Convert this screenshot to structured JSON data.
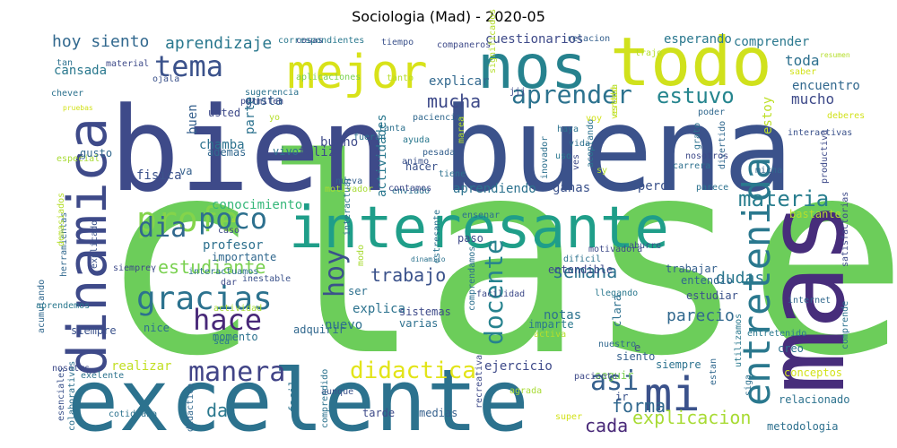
{
  "title": "Sociologia (Mad) - 2020-05",
  "words": [
    {
      "text": "clase",
      "color": "#6ccd5a"
    },
    {
      "text": "bien",
      "color": "#3e4a89"
    },
    {
      "text": "buena",
      "color": "#3b528b"
    },
    {
      "text": "mas",
      "color": "#472d7b"
    },
    {
      "text": "excelente",
      "color": "#2c728e"
    },
    {
      "text": "todo",
      "color": "#d0e11c"
    },
    {
      "text": "nos",
      "color": "#26828e"
    },
    {
      "text": "interesante",
      "color": "#1f9e89"
    },
    {
      "text": "dinamica",
      "color": "#3e4a89"
    },
    {
      "text": "mejor",
      "color": "#d8e219"
    },
    {
      "text": "mi",
      "color": "#3b528b"
    },
    {
      "text": "gracias",
      "color": "#2c728e"
    },
    {
      "text": "entretenida",
      "color": "#2a788e"
    },
    {
      "text": "profe",
      "color": "#84d44b"
    },
    {
      "text": "manera",
      "color": "#414487"
    },
    {
      "text": "tema",
      "color": "#3b528b"
    },
    {
      "text": "hace",
      "color": "#482878"
    },
    {
      "text": "poco",
      "color": "#2d708e"
    },
    {
      "text": "dia",
      "color": "#31688e"
    },
    {
      "text": "didactica",
      "color": "#e2e418"
    },
    {
      "text": "aprender",
      "color": "#2c728e"
    },
    {
      "text": "materia",
      "color": "#287d8e"
    },
    {
      "text": "asi",
      "color": "#35608d"
    },
    {
      "text": "docente",
      "color": "#26828e"
    },
    {
      "text": "hoy",
      "color": "#3b528b"
    },
    {
      "text": "estuvo",
      "color": "#25858e"
    },
    {
      "text": "explicacion",
      "color": "#a8db34"
    },
    {
      "text": "estudiante",
      "color": "#7ad151"
    },
    {
      "text": "forma",
      "color": "#31688e"
    },
    {
      "text": "cada",
      "color": "#482878"
    },
    {
      "text": "semana",
      "color": "#2c728e"
    },
    {
      "text": "trabajo",
      "color": "#3b528b"
    },
    {
      "text": "da",
      "color": "#2a788e"
    },
    {
      "text": "mucha",
      "color": "#3e4a89"
    },
    {
      "text": "hoy siento",
      "color": "#31688e"
    },
    {
      "text": "aprendizaje",
      "color": "#2a788e"
    },
    {
      "text": "conocimiento",
      "color": "#35b779"
    },
    {
      "text": "dudas",
      "color": "#2a788e"
    },
    {
      "text": "parecio",
      "color": "#31688e"
    },
    {
      "text": "toda",
      "color": "#2d708e"
    },
    {
      "text": "mucho",
      "color": "#3e4a89"
    },
    {
      "text": "encuentro",
      "color": "#31688e"
    },
    {
      "text": "explica",
      "color": "#2c728e"
    },
    {
      "text": "nuevo",
      "color": "#2d708e"
    },
    {
      "text": "ejercicio",
      "color": "#3e4a89"
    },
    {
      "text": "notas",
      "color": "#2c728e"
    },
    {
      "text": "espero",
      "color": "#3b528b"
    },
    {
      "text": "gusta",
      "color": "#35608d"
    },
    {
      "text": "comprender",
      "color": "#2a788e"
    },
    {
      "text": "esperando",
      "color": "#2a788e"
    },
    {
      "text": "cuestionarios",
      "color": "#3e4a89"
    },
    {
      "text": "explicar",
      "color": "#31688e"
    },
    {
      "text": "cansada",
      "color": "#2a788e"
    },
    {
      "text": "aprendiendo",
      "color": "#2c728e"
    },
    {
      "text": "ganas",
      "color": "#3b528b"
    },
    {
      "text": "bastante",
      "color": "#b5de2b"
    },
    {
      "text": "estoy",
      "color": "#bddf26"
    },
    {
      "text": "buen",
      "color": "#35608d"
    },
    {
      "text": "chamba",
      "color": "#2c728e"
    },
    {
      "text": "feliz",
      "color": "#3e4a89"
    },
    {
      "text": "actividades",
      "color": "#2a788e"
    },
    {
      "text": "profesor",
      "color": "#2d708e"
    },
    {
      "text": "importante",
      "color": "#31688e"
    },
    {
      "text": "ser",
      "color": "#2d708e"
    },
    {
      "text": "bueno",
      "color": "#3e4a89"
    },
    {
      "text": "fisica",
      "color": "#3b528b"
    },
    {
      "text": "va",
      "color": "#35608d"
    },
    {
      "text": "parte",
      "color": "#2c728e"
    },
    {
      "text": "usted",
      "color": "#3e4a89"
    },
    {
      "text": "vivo",
      "color": "#2d708e"
    },
    {
      "text": "ademas",
      "color": "#31688e"
    },
    {
      "text": "hacer",
      "color": "#3b528b"
    },
    {
      "text": "siento",
      "color": "#35608d"
    },
    {
      "text": "siempre",
      "color": "#2c728e"
    },
    {
      "text": "realizar",
      "color": "#c2df23"
    },
    {
      "text": "momento",
      "color": "#2c728e"
    },
    {
      "text": "adquirir",
      "color": "#31688e"
    },
    {
      "text": "sistemas",
      "color": "#3e4a89"
    },
    {
      "text": "varias",
      "color": "#2d708e"
    },
    {
      "text": "imparte",
      "color": "#2a788e"
    },
    {
      "text": "e",
      "color": "#3e4a89"
    },
    {
      "text": "creo",
      "color": "#2c728e"
    },
    {
      "text": "relacionado",
      "color": "#2c728e"
    },
    {
      "text": "metodologia",
      "color": "#2d708e"
    },
    {
      "text": "conceptos",
      "color": "#d2e21b"
    },
    {
      "text": "clara",
      "color": "#2d708e"
    },
    {
      "text": "paso",
      "color": "#3e4a89"
    },
    {
      "text": "estudiar",
      "color": "#3b528b"
    },
    {
      "text": "entendio",
      "color": "#31688e"
    },
    {
      "text": "trabajar",
      "color": "#35608d"
    },
    {
      "text": "entendible",
      "color": "#3e4a89"
    },
    {
      "text": "llegando",
      "color": "#2a788e"
    },
    {
      "text": "nuestro",
      "color": "#31688e"
    },
    {
      "text": "seguir",
      "color": "#7ad151"
    },
    {
      "text": "ir",
      "color": "#3b528b"
    },
    {
      "text": "tarde",
      "color": "#3e4a89"
    },
    {
      "text": "medias",
      "color": "#35608d"
    },
    {
      "text": "facil",
      "color": "#2c728e"
    },
    {
      "text": "aunque",
      "color": "#3b528b"
    },
    {
      "text": "cotidiana",
      "color": "#2c728e"
    },
    {
      "text": "dar",
      "color": "#3e4a89"
    },
    {
      "text": "nice",
      "color": "#2d708e"
    },
    {
      "text": "sea",
      "color": "#2a788e"
    },
    {
      "text": "siempre",
      "color": "#3b528b"
    },
    {
      "text": "acumulando",
      "color": "#31688e"
    },
    {
      "text": "exelente",
      "color": "#2c728e"
    },
    {
      "text": "nosotrs",
      "color": "#3e4a89"
    },
    {
      "text": "especial",
      "color": "#a8db34"
    },
    {
      "text": "explicado",
      "color": "#3b528b"
    },
    {
      "text": "gusto",
      "color": "#31688e"
    },
    {
      "text": "chever",
      "color": "#2c728e"
    },
    {
      "text": "tan",
      "color": "#2d708e"
    },
    {
      "text": "material",
      "color": "#3e4a89"
    },
    {
      "text": "ojala",
      "color": "#3b528b"
    },
    {
      "text": "aplicaciones",
      "color": "#7ad151"
    },
    {
      "text": "sugerencia",
      "color": "#2c728e"
    },
    {
      "text": "permiten",
      "color": "#3e4a89"
    },
    {
      "text": "tanto",
      "color": "#b5de2b"
    },
    {
      "text": "cosas",
      "color": "#3e4a89"
    },
    {
      "text": "tiempo",
      "color": "#3b528b"
    },
    {
      "text": "companeros",
      "color": "#3e4a89"
    },
    {
      "text": "relacion",
      "color": "#35608d"
    },
    {
      "text": "paciencia",
      "color": "#31688e"
    },
    {
      "text": "tanta",
      "color": "#2d708e"
    },
    {
      "text": "ayuda",
      "color": "#2a788e"
    },
    {
      "text": "pesada",
      "color": "#35608d"
    },
    {
      "text": "jjj",
      "color": "#3e4a89"
    },
    {
      "text": "haya",
      "color": "#2c728e"
    },
    {
      "text": "vida",
      "color": "#2d708e"
    },
    {
      "text": "uso",
      "color": "#2a788e"
    },
    {
      "text": "poder",
      "color": "#31688e"
    },
    {
      "text": "grato",
      "color": "#2c728e"
    },
    {
      "text": "divertido",
      "color": "#31688e"
    },
    {
      "text": "nosotros",
      "color": "#3e4a89"
    },
    {
      "text": "carrera",
      "color": "#2d708e"
    },
    {
      "text": "micha",
      "color": "#31688e"
    },
    {
      "text": "parece",
      "color": "#2c728e"
    },
    {
      "text": "productiva",
      "color": "#3e4a89"
    },
    {
      "text": "interactivas",
      "color": "#3b528b"
    },
    {
      "text": "inovador",
      "color": "#2d708e"
    },
    {
      "text": "acoplando",
      "color": "#2c728e"
    },
    {
      "text": "animo",
      "color": "#3b528b"
    },
    {
      "text": "nueva",
      "color": "#35608d"
    },
    {
      "text": "enviado",
      "color": "#2c728e"
    },
    {
      "text": "motivador",
      "color": "#a8db34"
    },
    {
      "text": "contamos",
      "color": "#3e4a89"
    },
    {
      "text": "ensenar",
      "color": "#2d708e"
    },
    {
      "text": "aburre",
      "color": "#3b528b"
    },
    {
      "text": "motivadora",
      "color": "#3e4a89"
    },
    {
      "text": "dificil",
      "color": "#2c728e"
    },
    {
      "text": "modo",
      "color": "#a8db34"
    },
    {
      "text": "interactuar",
      "color": "#2c728e"
    },
    {
      "text": "caso",
      "color": "#3e4a89"
    },
    {
      "text": "herramientas",
      "color": "#31688e"
    },
    {
      "text": "interactuamos",
      "color": "#2d708e"
    },
    {
      "text": "inestable",
      "color": "#3b528b"
    },
    {
      "text": "actividad",
      "color": "#a8db34"
    },
    {
      "text": "estresante",
      "color": "#2c728e"
    },
    {
      "text": "facilidad",
      "color": "#3e4a89"
    },
    {
      "text": "comprendamos",
      "color": "#2d708e"
    },
    {
      "text": "entretenido",
      "color": "#2a788e"
    },
    {
      "text": "internet",
      "color": "#31688e"
    },
    {
      "text": "satisfactorias",
      "color": "#3e4a89"
    },
    {
      "text": "comprende",
      "color": "#2c728e"
    },
    {
      "text": "siga",
      "color": "#2d708e"
    },
    {
      "text": "utilizamos",
      "color": "#2a788e"
    },
    {
      "text": "estan",
      "color": "#31688e"
    },
    {
      "text": "paciente",
      "color": "#3e4a89"
    },
    {
      "text": "agrada",
      "color": "#a8db34"
    },
    {
      "text": "super",
      "color": "#d2e21b"
    },
    {
      "text": "recreativa",
      "color": "#3e4a89"
    },
    {
      "text": "comprendido",
      "color": "#2c728e"
    },
    {
      "text": "didactico",
      "color": "#31688e"
    },
    {
      "text": "colaborativas",
      "color": "#2d708e"
    },
    {
      "text": "esenciales",
      "color": "#3b528b"
    },
    {
      "text": "aprendemos",
      "color": "#2a788e"
    },
    {
      "text": "siempreγ",
      "color": "#3e4a89"
    },
    {
      "text": "saber",
      "color": "#d2e21b"
    },
    {
      "text": "deberes",
      "color": "#d2e21b"
    },
    {
      "text": "voy",
      "color": "#d2e21b"
    },
    {
      "text": "verdad",
      "color": "#d2e21b"
    },
    {
      "text": "activa",
      "color": "#b5de2b"
    },
    {
      "text": "estaba",
      "color": "#b5de2b"
    },
    {
      "text": "sy",
      "color": "#b5de2b"
    },
    {
      "text": "yo",
      "color": "#b5de2b"
    },
    {
      "text": "fueran",
      "color": "#2c728e"
    },
    {
      "text": "ves",
      "color": "#3e4a89"
    },
    {
      "text": "tiene",
      "color": "#2d708e"
    },
    {
      "text": "marea",
      "color": "#b5de2b"
    },
    {
      "text": "demasiados",
      "color": "#b5de2b"
    },
    {
      "text": "significados",
      "color": "#b5de2b"
    },
    {
      "text": "trajo",
      "color": "#b5de2b"
    },
    {
      "text": "resumen",
      "color": "#b5de2b"
    },
    {
      "text": "pruebas",
      "color": "#d2e21b"
    },
    {
      "text": "correspondientes",
      "color": "#2a788e"
    },
    {
      "text": "s",
      "color": "#b5de2b"
    },
    {
      "text": "dinamico",
      "color": "#2c728e"
    },
    {
      "text": "participacion",
      "color": "#3e4a89"
    }
  ]
}
